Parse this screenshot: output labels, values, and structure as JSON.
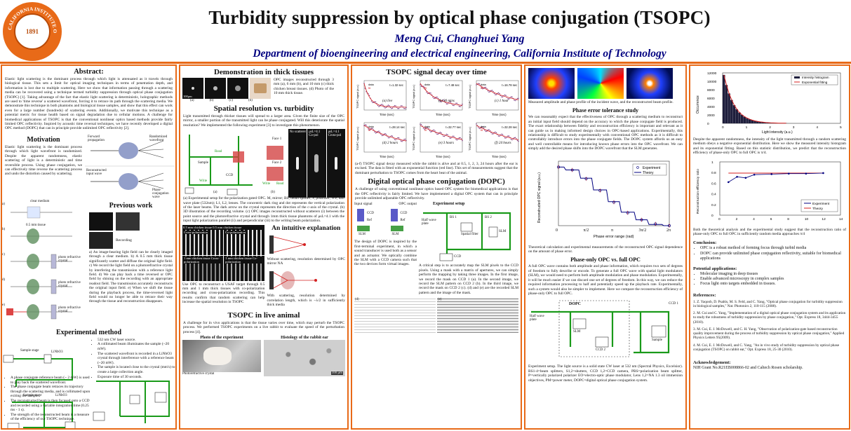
{
  "header": {
    "title": "Turbidity suppression by optical phase conjugation (TSOPC)",
    "authors": "Meng Cui, Changhuei Yang",
    "department": "Department of bioengineering and electrical engineering, California Institute of Technology",
    "seal_text": "CALIFORNIA INSTITUTE OF TECHNOLOGY",
    "seal_year": "1891"
  },
  "colors": {
    "accent": "#e86a18",
    "navy": "#000080",
    "beam": "#1a9a1a"
  },
  "col1": {
    "abstract_title": "Abstract:",
    "abstract_text": "Elastic light scattering is the dominant process through which light is attenuated as it travels through biological tissue. This sets a limit for optical imaging techniques in terms of penetration depth, and information is lost due to multiple scattering. Here we show that information passing through a scattering media can be recovered using a technique termed turbidity suppression through optical phase conjugation (TSOPC) [1]. Taking advantage of the fact that elastic light scattering is deterministic, holographic methods are used to 'time reverse' a scattered wavefront, forcing it to retrace its path through the scattering media. We demonstrate this technique in both phantoms and biological tissue samples, and show that this effect can work even for a large number (hundreds) of scattering events. Additionally, we motivate this technique as a potential metric for tissue health based on signal degradation due to cellular motions. A challenge for biomedical applications of TSOPC is that the conventional nonlinear optics based methods provide fairly limited OPC reflectivity. Inspired by acoustic time reversal techniques, we have recently developed a digital OPC method (DOPC) that can in principle provide unlimited OPC reflectivity [2].",
    "motivation_title": "Motivation",
    "motivation_text": "Elastic light scattering is the dominant process through which light wavefront is randomized. Despite the apparent randomness, elastic scattering of light is a deterministic and time reversible process. Using phase conjugation, we can effectively time reverse the scattering process and undo the distortion caused by scattering.",
    "mot_labels": [
      "Forward propagation",
      "Randomized wavefront",
      "Reconstructed input wave",
      "Phase conjugation wave"
    ],
    "prev_title": "Previous work",
    "prev_text": "a) An image-bearing light field can be clearly imaged through a clear medium. b) A 0.5 mm thick tissue significantly scatter and diffuse the original light field. c) We record the light field on a photorefractive crystal by interfering the transmission with a reference light field. d) We can play back a time reversed or OPC field by shining on the recording with an appropriate readout field. The transmission accurately reconstructs the original input field. e) When we shift the tissue during the playback process, the time-reversed light field would no longer be able to retrace their way through the tissue and reconstruction disappears.",
    "prev_labels": [
      "clear medium",
      "0.5 mm tissue",
      "photo refractive crystal",
      "Recording",
      "photo refractive crystal",
      "photo refractive crystal"
    ],
    "prev_letters": [
      "a)",
      "b)",
      "c)",
      "d)",
      "e)"
    ],
    "exp_title": "Experimental method",
    "exp_bullets": [
      "532 nm CW laser source.",
      "A collimated beam illuminates the sample (~20 mW).",
      "The scattered wavefront is recorded in a LiNbO3 crystal through interference with a reference beam (~20 mW).",
      "The sample is located close to the crystal (mm's) to create a large collection angle.",
      "Exposure time of 30 seconds."
    ],
    "exp_bullets2": [
      "A phase conjugate reference beam (~ 2 mW) is used to play back the scattered wavefront.",
      "The phase conjugate beam retraces its trajectory through the scattering media, and is collimated upon exiting the sample.",
      "The reconstructed beam is then focused onto a CCD and recorded using a variable integration time (0.25 ms - 1 s).",
      "The strength of the reconstructed beam is a measure of the efficiency of our TSOPC technique."
    ],
    "exp_labels": [
      "Sample stage",
      "LiNbO3",
      "Shutter",
      "Lens",
      "Beam splitter",
      "Wave plate",
      "Mirror"
    ]
  },
  "col2": {
    "demo_title": "Demonstration in thick tissues",
    "demo_caption": "OPC images reconstructed through 3 mm (a), 6 mm (b), and 10 mm (c) thick chicken breast tissues. (d) Photo of the 10 mm thick tissue.",
    "demo_letters": [
      "(a)",
      "(b)",
      "(c)",
      "(d)"
    ],
    "demo_scale": "100μm",
    "sr_title": "Spatial resolution vs. turbidity",
    "sr_text": "Light transmitted through thicker tissues will spread to a larger area. Given the finite size of the OPC mirror, a smaller portion of the transmitted light can be phase conjugated. Will this deteriorate the spatial resolution? We implemented the following experiment [3] to investigate this phenomenon.",
    "sr_labels": [
      "Face 1",
      "Face 2",
      "No scatterer",
      "μsL=4.1 Co-pol",
      "μsL=4.1 Cross-pol",
      "Read",
      "Write",
      "Sample",
      "CCD",
      "Write",
      "Read"
    ],
    "sr_letters": [
      "(a)",
      "(b)",
      "(c)"
    ],
    "sr_caption": "(a) Experimental setup for the polarization gated OPC. M, mirror; BS, beam splitter; P, polarizer; WP, half wave plate (532nm); L1, L2, lenses. The concentric dark ring and dot represents the vertical polarization of the laser beams. The dark arrow on the crystal represents the direction of the c-axis of the crystal. (b) 3D illustration of the recording volume. (c) OPC images reconstructed without scatterers (i) between the point source and the photorefractive crystal and through 1mm thick tissue phantoms of μsL=4.1 with the input light polarization parallel (ii) and perpendicular (iii) to the writing beam polarization.",
    "usaf_headers": [
      "Cross-polarization",
      "Co-polarization",
      "1 mm chicken tissue Cross-polarization",
      "1 mm chicken tissue Co-polarization"
    ],
    "usaf_top": "0.5 mm chicken tissue  0.5 mm chicken tissue",
    "usaf_caption": "Use OPC to reconstruct a USAF target through 0.5 mm and 1 mm thick tissues with co-polarization recording and cross-polarization recording. This results confirm that random scattering can help increase the spatial resolution in TSOPC",
    "intuitive_title": "An intuitive explanation",
    "intuitive_text1": "Without scattering, resolution determined by OPC mirror NA",
    "intuitive_text2": "With scattering, resolution determined by correlation length, which is ~λ/2 in sufficiently thick media",
    "animal_title": "TSOPC in live animal",
    "animal_text": "A challenge for in vivo applications is that the tissue varies over time, which may perturb the TSOPC process. We performed TSOPC experiments on a live rabbit to evaluate the speed of the perturbation process [4].",
    "photo_title": "Photo of the experiment",
    "histo_title": "Histology of the rabbit ear",
    "photo_caption": "Photorefractive crystal",
    "histo_scale": "100 μm"
  },
  "col3": {
    "decay_title": "TSOPC signal decay over time",
    "decay_plots": [
      {
        "tag": "(a) live",
        "tau": "τ=1.32 sec"
      },
      {
        "tag": "(b) 30 mins",
        "tau": "τ=7.48 sec"
      },
      {
        "tag": "(c) 1 hour",
        "tau": "τ=16.78 sec"
      },
      {
        "tag": "(d) 2 hours",
        "tau": "τ=28.14 sec"
      },
      {
        "tag": "(e) 3 hours",
        "tau": "τ=32.77 sec"
      },
      {
        "tag": "(f) 24 hours",
        "tau": "τ=32.28 sec"
      }
    ],
    "decay_legend": [
      "data",
      "fit"
    ],
    "decay_xlabel": "Time (sec)",
    "decay_ylabel": "TSOPC signal (a.u.)",
    "decay_caption": "(a-f) TSOPC signal decay measured while the rabbit is alive and at 0.5, 1, 2, 3, 24 hours after the ear is excised. The data is fitted with an exponential function (red line). This set of measurements suggest that the dominant perturbation to TSOPC comes from the heart beat of the animal.",
    "dopc_title": "Digital optical phase conjugation (DOPC)",
    "dopc_text": "A challenge of using conventional nonlinear optics based OPC system for biomedical applications is that the OPC reflectivity is fairly limited. We have implemented a digital OPC system that can in principle provide unlimited adjustable OPC reflectivity.",
    "dopc_input": "Input signal",
    "dopc_output": "OPC output",
    "dopc_parts": [
      "CCD",
      "Ref",
      "SLM",
      "CCD",
      "Ref",
      "SLM"
    ],
    "exp_setup": "Experiment setup",
    "dopc_desc": "The design of DOPC is inspired by the first-terminal experiment, in which a sound transducer is used both as a sensor and an actuator. We optically combine the SLM with a CCD camera such that the two devices form virtual images.",
    "dopc_setup_labels": [
      "Half wave plate",
      "BS 1",
      "BS 2",
      "Spatial filter",
      "CCD",
      "SLM",
      "BS 3",
      "PBS",
      "Sample",
      "CCD"
    ],
    "dopc_critical": "A critical step is to accurately map the SLM pixels to the CCD pixels. Using a mask with a matrix of apertures, we can simply perform the mapping by taking three images. In the first image, we record the mask on CCD 1 (a). In the second image, we record the SLM pattern on CCD 2 (b). In the third image, we record the mask on CCD 2 (c). (d) and (e) are the recorded SLM pattern and the image of the mask.",
    "map_letters": [
      "(a)",
      "(b)",
      "(c)",
      "(d)",
      "(e)"
    ]
  },
  "col4": {
    "top_caption": "Measured amplitude and phase profile of the incident wave, and the reconstructed beam profile.",
    "tol_title": "Phase error tolerance study",
    "tol_text": "We can reasonably expect that the effectiveness of OPC through a scattering medium to reconstruct an initial input field should depend on the accuracy to which the phase conjugate field is produced. The exact relationship between fidelity and reconstruction efficiency is important and relevant as it can guide us in making informed design choices in OPC-based applications. Experimentally, this relationship is difficult to study experimentally with conventional OPC methods as it is difficult to controllably introduce errors into the phase conjugate fields. The DOPC system affords us an easy and well controllable means for introducing known phase errors into the OPC wavefront. We can simply add the desired phase shifts into the DOPC wavefront that the SLM generates.",
    "tol_chart_title": "",
    "tol_caption": "Theoretical calculation and experimental measurements of the reconstructed OPC signal dependence on the amount of phase error.",
    "po_title": "Phase-only OPC vs. full OPC",
    "po_text": "A full OPC wave contains both amplitude and phase information, which requires two sets of degrees of freedom to fully describe or encode. To generate a full OPC wave with spatial light modulators (SLM), we would need to perform both amplitude modulation and phase modulation. Experimentally, it will be much easier if we can discard one set of degrees of freedom. In this way, we can reduce the required information processing to half and potentially speed up the playback rate. Experimentally, such a system would also be simpler to implement. Here we compare the reconstruction efficiency of phase-only OPC to full OPC.",
    "po_labels": [
      "DOPC",
      "Half wave plate",
      "BS 1",
      "BS 2",
      "SLM",
      "CCD 2",
      "PBS",
      "Spatial filter",
      "BS 3",
      "BS 4",
      "Sample",
      "CCD 1",
      "EO"
    ],
    "po_caption": "Experiment setup. The light source is a solid state CW laser at 532 nm (Spectral Physics, Excelsior). BS1-4=beam splitters, S1,2=shutters, CCD 1,2=CCD camera, PBS=polarization beam splitter, P=vertically polarized polarizer EO=electro-optic phase modulator, Lens 1,2=NA 1.3 oil immersion objectives, PM=power meter, DOPC=digital optical phase conjugation system."
  },
  "col5": {
    "hist_legend": [
      "Intensity histogram",
      "Exponential fitting"
    ],
    "hist_ylabel": "Occurrence",
    "hist_xlabel": "Light intensity (a.u.)",
    "hist_text": "Despite the apparent randomness, the intensity of the light transmitted through a random scattering medium obeys a negative exponential distribution. Here we show the measured intensity histogram and its exponential fitting. Based on this statistic distribution, we predict that the reconstruction efficiency of phase-only OPC to full OPC is π/4.",
    "ratio_ylabel": "Reconstruction efficiency ratio",
    "ratio_legend": [
      "Experiment",
      "Theory"
    ],
    "ratio_text": "Both the theoretical analysis and the experimental study suggest that the reconstruction ratio of phase-only OPC to full OPC in sufficiently random media approaches π/4",
    "concl_title": "Conclusion:",
    "concl_items": [
      "OPC is a robust method of forming focus through turbid media",
      "DOPC can provide unlimited phase conjugation reflectivity, suitable for biomedical applications"
    ],
    "pot_title": "Potential applications:",
    "pot_items": [
      "Molecular imaging in deep tissues",
      "Enable advanced microscopy in complex samples",
      "Focus light onto targets embedded in tissues."
    ],
    "refs_title": "References:",
    "refs": [
      "1.   Z. Yaqoob, D. Psaltis, M. S. Feld, and C. Yang, \"Optical phase conjugation for turbidity suppression in biological samples,\" Nat. Photonics 2, 110-115 (2008).",
      "2.   M. Cui and C. Yang, \"Implementation of a digital optical phase conjugation system and its application to study the robustness of turbidity suppression by phase conjugation,\" Opt. Express 18, 3444-3455 (2010).",
      "3.   M. Cui, E. J. McDowell, and C. H. Yang, \"Observation of polarization-gate based reconstruction quality improvement during the process of turbidity suppression by optical phase conjugation,\" Applied Physics Letters 95(2009).",
      "4.   M. Cui, E. J. McDowell, and C. Yang, \"An in vivo study of turbidity suppression by optical phase conjugation (TSOPC) on rabbit ear,\" Opt. Express 18, 25-30 (2010)."
    ],
    "ack_title": "Acknowledgement:",
    "ack_text": "NIH Grant No.R21EB008866-02 and Caltech Rosen scholarship."
  },
  "chart_data": [
    {
      "type": "line",
      "title": "",
      "xlabel": "Phase error range (rad)",
      "ylabel": "Reconstructed OPC signal (a.u.)",
      "xticks": [
        "0",
        "π/2",
        "π",
        "3π/2",
        "2π"
      ],
      "x": [
        0,
        0.785,
        1.571,
        2.356,
        3.142,
        3.927,
        4.712,
        5.498,
        6.283
      ],
      "series": [
        {
          "name": "Experiment",
          "values": [
            1.0,
            0.95,
            0.8,
            0.6,
            0.4,
            0.22,
            0.1,
            0.03,
            0.0
          ]
        },
        {
          "name": "Theory",
          "values": [
            1.0,
            0.95,
            0.81,
            0.61,
            0.41,
            0.23,
            0.1,
            0.02,
            0.0
          ]
        }
      ],
      "ylim": [
        0,
        1.1
      ],
      "legend": "top-right"
    },
    {
      "type": "bar",
      "xlabel": "Light intensity (a.u.)",
      "ylabel": "Occurrence",
      "xticks": [
        "0",
        "1",
        "2",
        "3",
        "4",
        "5"
      ],
      "yticks": [
        "0",
        "2000",
        "4000",
        "6000",
        "8000",
        "10000",
        "12000"
      ],
      "values": [
        12000,
        9500,
        7400,
        5800,
        4500,
        3500,
        2700,
        2100,
        1650,
        1280,
        1000,
        780,
        600,
        470,
        370,
        290,
        220,
        170,
        130,
        100,
        80,
        60,
        45,
        35,
        28
      ],
      "ylim": [
        0,
        12500
      ],
      "legend": "top-right"
    },
    {
      "type": "line",
      "xlabel": "",
      "ylabel": "Reconstruction efficiency ratio",
      "xticks": [
        "0",
        "2",
        "4",
        "6",
        "8",
        "10",
        "12",
        "14"
      ],
      "yticks": [
        "0",
        "0.2",
        "0.4",
        "0.6",
        "0.8",
        "1"
      ],
      "x": [
        1,
        2,
        3,
        4,
        6,
        8,
        10,
        12
      ],
      "series": [
        {
          "name": "Experiment",
          "values": [
            0.62,
            0.72,
            0.7,
            0.76,
            0.77,
            0.78,
            0.78,
            0.79
          ]
        },
        {
          "name": "Theory",
          "values": [
            0.79,
            0.79,
            0.79,
            0.79,
            0.79,
            0.79,
            0.79,
            0.79
          ]
        }
      ],
      "ylim": [
        0,
        1
      ],
      "legend": "bottom-right"
    }
  ]
}
